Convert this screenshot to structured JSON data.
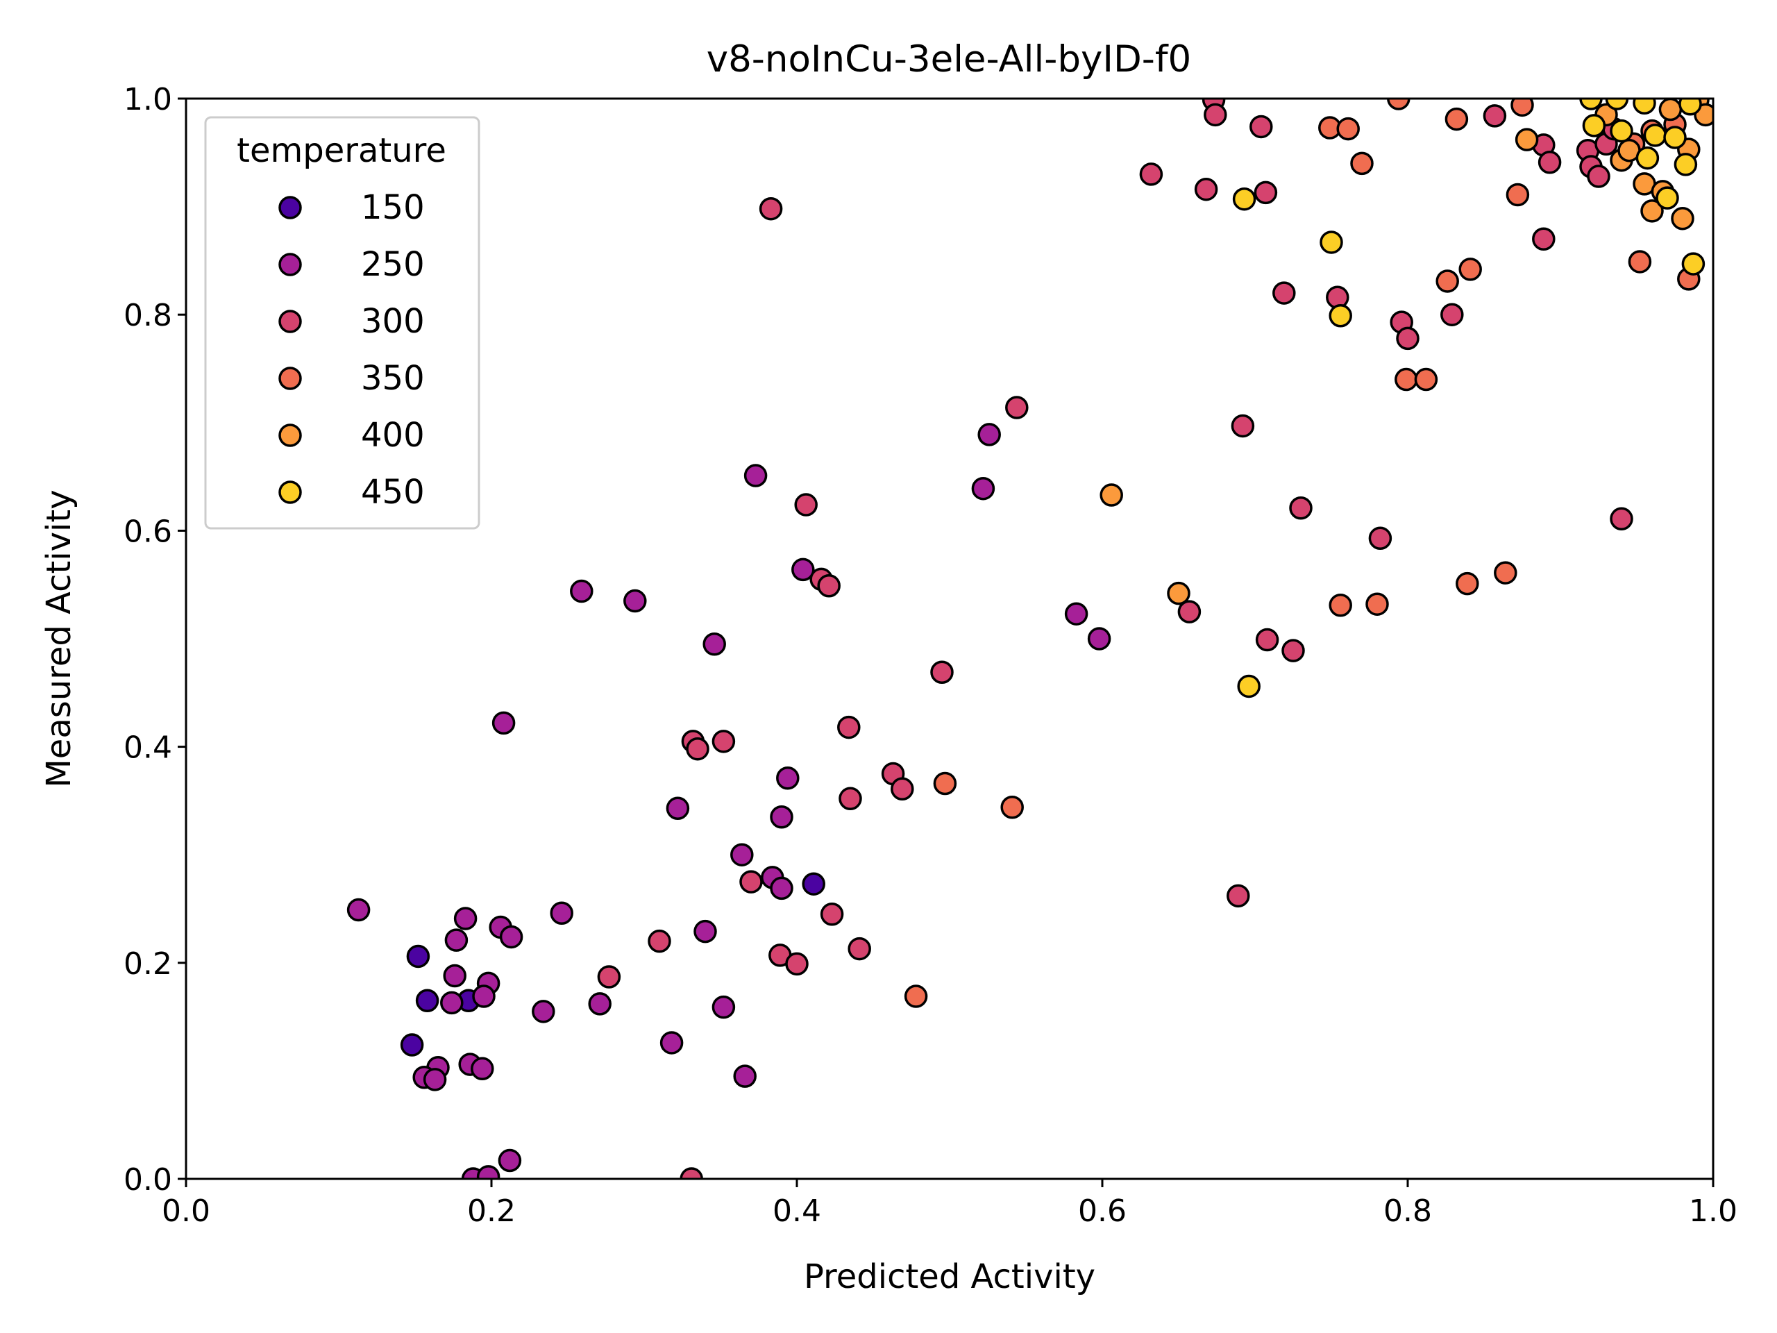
{
  "chart_data": {
    "type": "scatter",
    "title": "v8-noInCu-3ele-All-byID-f0",
    "xlabel": "Predicted Activity",
    "ylabel": "Measured Activity",
    "xlim": [
      0.0,
      1.0
    ],
    "ylim": [
      0.0,
      1.0
    ],
    "x_ticks": [
      "0.0",
      "0.2",
      "0.4",
      "0.6",
      "0.8",
      "1.0"
    ],
    "y_ticks": [
      "0.0",
      "0.2",
      "0.4",
      "0.6",
      "0.8",
      "1.0"
    ],
    "grid": false,
    "legend": {
      "title": "temperature",
      "placement": "upper-left",
      "entries": [
        "150",
        "250",
        "300",
        "350",
        "400",
        "450"
      ]
    },
    "series": [
      {
        "name": "150",
        "color": "#4b03a1",
        "points": [
          [
            0.152,
            0.206
          ],
          [
            0.158,
            0.165
          ],
          [
            0.148,
            0.124
          ],
          [
            0.185,
            0.165
          ],
          [
            0.411,
            0.273
          ]
        ]
      },
      {
        "name": "250",
        "color": "#a62098",
        "points": [
          [
            0.113,
            0.249
          ],
          [
            0.183,
            0.241
          ],
          [
            0.177,
            0.221
          ],
          [
            0.176,
            0.188
          ],
          [
            0.198,
            0.181
          ],
          [
            0.195,
            0.169
          ],
          [
            0.174,
            0.163
          ],
          [
            0.165,
            0.103
          ],
          [
            0.156,
            0.094
          ],
          [
            0.163,
            0.092
          ],
          [
            0.186,
            0.106
          ],
          [
            0.194,
            0.102
          ],
          [
            0.208,
            0.422
          ],
          [
            0.206,
            0.233
          ],
          [
            0.213,
            0.224
          ],
          [
            0.246,
            0.246
          ],
          [
            0.234,
            0.155
          ],
          [
            0.271,
            0.162
          ],
          [
            0.188,
            0.0
          ],
          [
            0.198,
            0.002
          ],
          [
            0.212,
            0.017
          ],
          [
            0.259,
            0.544
          ],
          [
            0.294,
            0.535
          ],
          [
            0.346,
            0.495
          ],
          [
            0.322,
            0.343
          ],
          [
            0.318,
            0.126
          ],
          [
            0.34,
            0.229
          ],
          [
            0.352,
            0.159
          ],
          [
            0.364,
            0.3
          ],
          [
            0.384,
            0.279
          ],
          [
            0.39,
            0.269
          ],
          [
            0.394,
            0.371
          ],
          [
            0.39,
            0.335
          ],
          [
            0.366,
            0.095
          ],
          [
            0.373,
            0.651
          ],
          [
            0.404,
            0.564
          ],
          [
            0.526,
            0.689
          ],
          [
            0.522,
            0.639
          ],
          [
            0.583,
            0.523
          ],
          [
            0.598,
            0.5
          ]
        ]
      },
      {
        "name": "300",
        "color": "#d5436e",
        "points": [
          [
            0.383,
            0.898
          ],
          [
            0.406,
            0.624
          ],
          [
            0.416,
            0.555
          ],
          [
            0.421,
            0.549
          ],
          [
            0.332,
            0.405
          ],
          [
            0.335,
            0.398
          ],
          [
            0.352,
            0.405
          ],
          [
            0.434,
            0.418
          ],
          [
            0.277,
            0.187
          ],
          [
            0.31,
            0.22
          ],
          [
            0.37,
            0.275
          ],
          [
            0.389,
            0.207
          ],
          [
            0.4,
            0.199
          ],
          [
            0.423,
            0.245
          ],
          [
            0.441,
            0.213
          ],
          [
            0.331,
            0.0
          ],
          [
            0.435,
            0.352
          ],
          [
            0.463,
            0.375
          ],
          [
            0.469,
            0.361
          ],
          [
            0.495,
            0.469
          ],
          [
            0.544,
            0.714
          ],
          [
            0.632,
            0.93
          ],
          [
            0.668,
            0.916
          ],
          [
            0.673,
            0.999
          ],
          [
            0.674,
            0.985
          ],
          [
            0.704,
            0.974
          ],
          [
            0.707,
            0.913
          ],
          [
            0.657,
            0.525
          ],
          [
            0.689,
            0.262
          ],
          [
            0.692,
            0.697
          ],
          [
            0.708,
            0.499
          ],
          [
            0.725,
            0.489
          ],
          [
            0.73,
            0.621
          ],
          [
            0.719,
            0.82
          ],
          [
            0.754,
            0.816
          ],
          [
            0.782,
            0.593
          ],
          [
            0.796,
            0.793
          ],
          [
            0.8,
            0.778
          ],
          [
            0.829,
            0.8
          ],
          [
            0.857,
            0.984
          ],
          [
            0.889,
            0.957
          ],
          [
            0.893,
            0.941
          ],
          [
            0.889,
            0.87
          ],
          [
            0.94,
            0.611
          ],
          [
            0.918,
            0.952
          ],
          [
            0.92,
            0.937
          ],
          [
            0.925,
            0.928
          ],
          [
            0.93,
            0.958
          ],
          [
            0.935,
            0.972
          ]
        ]
      },
      {
        "name": "350",
        "color": "#f06d50",
        "points": [
          [
            0.478,
            0.169
          ],
          [
            0.497,
            0.366
          ],
          [
            0.541,
            0.344
          ],
          [
            0.749,
            0.973
          ],
          [
            0.761,
            0.972
          ],
          [
            0.77,
            0.94
          ],
          [
            0.794,
            1.0
          ],
          [
            0.832,
            0.981
          ],
          [
            0.826,
            0.831
          ],
          [
            0.841,
            0.842
          ],
          [
            0.799,
            0.74
          ],
          [
            0.812,
            0.74
          ],
          [
            0.756,
            0.531
          ],
          [
            0.78,
            0.532
          ],
          [
            0.839,
            0.551
          ],
          [
            0.864,
            0.561
          ],
          [
            0.872,
            0.911
          ],
          [
            0.875,
            0.994
          ],
          [
            0.952,
            0.849
          ],
          [
            0.984,
            0.833
          ],
          [
            0.948,
            0.958
          ],
          [
            0.96,
            0.97
          ],
          [
            0.975,
            0.976
          ]
        ]
      },
      {
        "name": "400",
        "color": "#fb9a3c",
        "points": [
          [
            0.606,
            0.633
          ],
          [
            0.65,
            0.542
          ],
          [
            0.878,
            0.962
          ],
          [
            0.94,
            0.943
          ],
          [
            0.955,
            0.921
          ],
          [
            0.96,
            0.896
          ],
          [
            0.967,
            0.914
          ],
          [
            0.98,
            0.889
          ],
          [
            0.984,
            0.953
          ],
          [
            0.99,
            0.999
          ],
          [
            0.995,
            0.985
          ],
          [
            0.945,
            0.952
          ],
          [
            0.93,
            0.985
          ],
          [
            0.972,
            0.99
          ]
        ]
      },
      {
        "name": "450",
        "color": "#fcce25",
        "points": [
          [
            0.693,
            0.907
          ],
          [
            0.696,
            0.456
          ],
          [
            0.75,
            0.867
          ],
          [
            0.756,
            0.799
          ],
          [
            0.92,
            1.0
          ],
          [
            0.937,
            1.0
          ],
          [
            0.955,
            0.996
          ],
          [
            0.922,
            0.975
          ],
          [
            0.94,
            0.97
          ],
          [
            0.962,
            0.966
          ],
          [
            0.975,
            0.964
          ],
          [
            0.957,
            0.945
          ],
          [
            0.97,
            0.908
          ],
          [
            0.982,
            0.939
          ],
          [
            0.987,
            0.847
          ],
          [
            0.985,
            0.995
          ]
        ]
      }
    ]
  }
}
